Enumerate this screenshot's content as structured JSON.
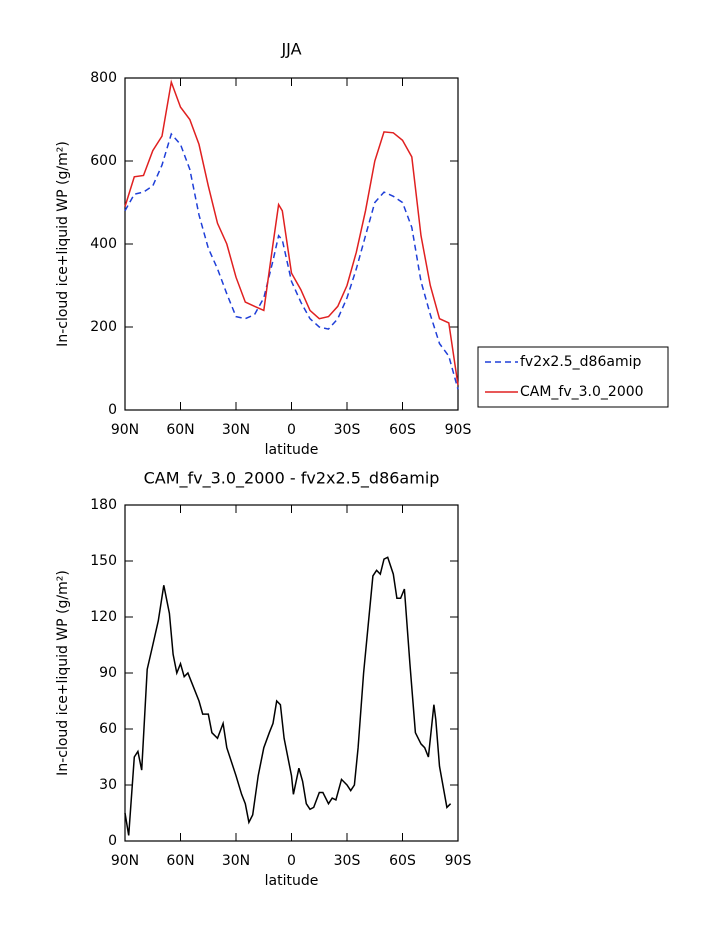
{
  "chart_data": [
    {
      "type": "line",
      "title": "JJA",
      "x_label": "latitude",
      "y_label": "In-cloud ice+liquid WP (g/m²)",
      "x": [
        90,
        85,
        80,
        75,
        70,
        65,
        60,
        55,
        50,
        45,
        40,
        35,
        30,
        25,
        20,
        15,
        10,
        7,
        5,
        0,
        -5,
        -10,
        -15,
        -20,
        -25,
        -30,
        -35,
        -40,
        -45,
        -50,
        -55,
        -60,
        -65,
        -70,
        -75,
        -80,
        -85,
        -90
      ],
      "series": [
        {
          "name": "fv2x2.5_d86amip",
          "color": "#1f3fd8",
          "dash": true,
          "values": [
            480,
            520,
            525,
            540,
            590,
            665,
            640,
            580,
            470,
            390,
            340,
            280,
            225,
            220,
            230,
            270,
            360,
            420,
            410,
            310,
            260,
            220,
            200,
            195,
            220,
            270,
            340,
            420,
            500,
            525,
            515,
            500,
            440,
            310,
            230,
            160,
            130,
            50
          ]
        },
        {
          "name": "CAM_fv_3.0_2000",
          "color": "#e02020",
          "dash": false,
          "values": [
            490,
            562,
            565,
            625,
            660,
            790,
            730,
            700,
            640,
            540,
            450,
            400,
            320,
            260,
            250,
            240,
            400,
            495,
            480,
            330,
            290,
            240,
            220,
            225,
            250,
            300,
            380,
            480,
            600,
            670,
            668,
            650,
            610,
            420,
            300,
            220,
            210,
            60
          ]
        }
      ],
      "xlim": [
        90,
        -90
      ],
      "xticks": [
        {
          "value": 90,
          "label": "90N"
        },
        {
          "value": 60,
          "label": "60N"
        },
        {
          "value": 30,
          "label": "30N"
        },
        0,
        {
          "value": -30,
          "label": "30S"
        },
        {
          "value": -60,
          "label": "60S"
        },
        {
          "value": -90,
          "label": "90S"
        }
      ],
      "ylim": [
        0,
        800
      ],
      "yticks": [
        0,
        200,
        400,
        600,
        800
      ],
      "legend": "right"
    },
    {
      "type": "line",
      "title": "CAM_fv_3.0_2000 - fv2x2.5_d86amip",
      "x_label": "latitude",
      "y_label": "In-cloud ice+liquid WP (g/m²)",
      "x": [
        90,
        88,
        85,
        83,
        81,
        78,
        75,
        72,
        69,
        66,
        64,
        62,
        60,
        58,
        56,
        54,
        50,
        48,
        45,
        43,
        40,
        37,
        35,
        30,
        27,
        25,
        23,
        21,
        18,
        15,
        12,
        10,
        8,
        6,
        4,
        0,
        -1,
        -4,
        -6,
        -8,
        -10,
        -12,
        -15,
        -17,
        -20,
        -22,
        -24,
        -27,
        -30,
        -32,
        -34,
        -36,
        -39,
        -44,
        -46,
        -48,
        -50,
        -52,
        -55,
        -57,
        -59,
        -61,
        -64,
        -67,
        -70,
        -72,
        -74,
        -77,
        -78,
        -80,
        -84,
        -86
      ],
      "values": [
        15,
        3,
        45,
        48,
        38,
        92,
        105,
        118,
        137,
        122,
        100,
        90,
        95,
        88,
        90,
        85,
        75,
        68,
        68,
        58,
        55,
        63,
        50,
        35,
        25,
        20,
        10,
        14,
        35,
        50,
        58,
        63,
        75,
        73,
        55,
        35,
        25,
        39,
        32,
        20,
        17,
        18,
        26,
        26,
        20,
        23,
        22,
        33,
        30,
        27,
        30,
        50,
        90,
        142,
        145,
        143,
        151,
        152,
        143,
        130,
        130,
        135,
        95,
        58,
        52,
        50,
        45,
        73,
        65,
        40,
        18,
        20
      ],
      "color": "#000000",
      "xlim": [
        90,
        -90
      ],
      "xticks": [
        {
          "value": 90,
          "label": "90N"
        },
        {
          "value": 60,
          "label": "60N"
        },
        {
          "value": 30,
          "label": "30N"
        },
        0,
        {
          "value": -30,
          "label": "30S"
        },
        {
          "value": -60,
          "label": "60S"
        },
        {
          "value": -90,
          "label": "90S"
        }
      ],
      "ylim": [
        0,
        180
      ],
      "yticks": [
        0,
        30,
        60,
        90,
        120,
        150,
        180
      ]
    }
  ]
}
